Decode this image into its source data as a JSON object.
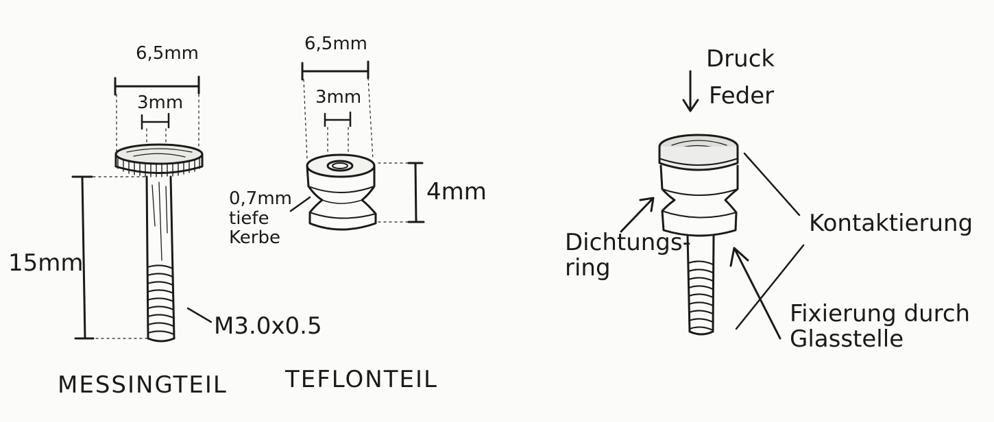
{
  "brass_part": {
    "dim_head_width": "6,5mm",
    "dim_hole": "3mm",
    "dim_length": "15mm",
    "thread": "M3.0x0.5",
    "caption": "MESSINGTEIL"
  },
  "teflon_part": {
    "dim_width": "6,5mm",
    "dim_hole": "3mm",
    "dim_height": "4mm",
    "groove_note": "0,7mm\ntiefe\nKerbe",
    "caption": "TEFLONTEIL"
  },
  "assembly": {
    "pressure": "Druck",
    "spring": "Feder",
    "seal_ring": "Dichtungs-\nring",
    "contacting": "Kontaktierung",
    "fixation": "Fixierung durch\nGlasstelle"
  }
}
